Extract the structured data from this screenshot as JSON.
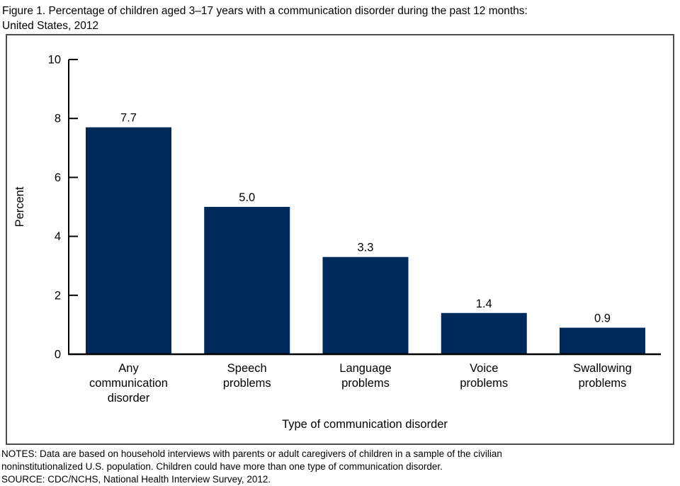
{
  "figure": {
    "title_line1": "Figure 1. Percentage of children aged 3–17 years with a communication disorder during the past 12 months:",
    "title_line2": "United States, 2012"
  },
  "chart_data": {
    "type": "bar",
    "title": "Figure 1. Percentage of children aged 3–17 years with a communication disorder during the past 12 months: United States, 2012",
    "categories": [
      "Any communication disorder",
      "Speech problems",
      "Language problems",
      "Voice problems",
      "Swallowing problems"
    ],
    "category_label_lines": [
      [
        "Any",
        "communication",
        "disorder"
      ],
      [
        "Speech",
        "problems"
      ],
      [
        "Language",
        "problems"
      ],
      [
        "Voice",
        "problems"
      ],
      [
        "Swallowing",
        "problems"
      ]
    ],
    "values": [
      7.7,
      5.0,
      3.3,
      1.4,
      0.9
    ],
    "value_labels": [
      "7.7",
      "5.0",
      "3.3",
      "1.4",
      "0.9"
    ],
    "xlabel": "Type of communication disorder",
    "ylabel": "Percent",
    "ylim": [
      0,
      10
    ],
    "yticks": [
      0,
      2,
      4,
      6,
      8,
      10
    ],
    "grid": false,
    "legend": null,
    "bar_color": "#002a5c",
    "axis_color": "#000000",
    "text_color": "#000000"
  },
  "notes": {
    "line1": "NOTES: Data are based on household interviews with parents or adult caregivers of children in a sample of the civilian",
    "line2": "noninstitutionalized U.S. population. Children could have more than one type of communication disorder.",
    "line3": "SOURCE: CDC/NCHS, National Health Interview Survey, 2012."
  }
}
